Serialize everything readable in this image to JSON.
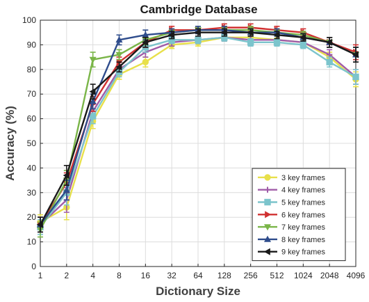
{
  "chart_data": {
    "type": "line",
    "title": "Cambridge Database",
    "xlabel": "Dictionary Size",
    "ylabel": "Accuracy (%)",
    "x": [
      1,
      2,
      4,
      8,
      16,
      32,
      64,
      128,
      256,
      512,
      1024,
      2048,
      4096
    ],
    "x_tick_labels": [
      "1",
      "2",
      "4",
      "8",
      "16",
      "32",
      "64",
      "128",
      "256",
      "512",
      "1024",
      "2048",
      "4096"
    ],
    "x_scale": "log2",
    "ylim": [
      0,
      100
    ],
    "y_ticks": [
      0,
      10,
      20,
      30,
      40,
      50,
      60,
      70,
      80,
      90,
      100
    ],
    "grid": true,
    "legend_position": "bottom-right",
    "series": [
      {
        "name": "3 key frames",
        "color": "#e8e04a",
        "marker": "circle",
        "values": [
          18,
          24,
          59,
          78,
          83,
          90,
          91,
          93,
          93,
          92,
          91,
          85,
          76
        ],
        "errors": [
          3,
          5,
          3,
          2,
          2,
          1.5,
          1.5,
          1.5,
          1.5,
          1.5,
          1.5,
          2,
          3
        ]
      },
      {
        "name": "4 key frames",
        "color": "#a05ca8",
        "marker": "plus",
        "values": [
          17,
          27,
          63,
          80,
          87,
          91,
          92,
          93,
          92,
          92,
          91,
          86,
          77
        ],
        "errors": [
          3,
          5,
          3,
          2,
          2,
          1.5,
          1.5,
          1.5,
          1.5,
          1.5,
          1.5,
          2,
          3
        ]
      },
      {
        "name": "5 key frames",
        "color": "#7cc4cc",
        "marker": "square",
        "values": [
          16,
          30,
          61,
          79,
          89,
          92,
          92,
          93,
          91,
          91,
          90,
          83,
          77
        ],
        "errors": [
          3,
          5,
          3,
          2,
          2,
          1.5,
          1.5,
          1.5,
          1.5,
          1.5,
          1.5,
          2,
          3
        ]
      },
      {
        "name": "6 key frames",
        "color": "#d03030",
        "marker": "triangle-right",
        "values": [
          17,
          34,
          66,
          83,
          91,
          96,
          96,
          97,
          97,
          96,
          95,
          91,
          87
        ],
        "errors": [
          3,
          4,
          3,
          2,
          2,
          1.5,
          1.5,
          1.5,
          1.5,
          1.5,
          1.5,
          2,
          3
        ]
      },
      {
        "name": "7 key frames",
        "color": "#7ab548",
        "marker": "triangle-down",
        "values": [
          15,
          35,
          84,
          86,
          92,
          95,
          96,
          96,
          96,
          95,
          94,
          91,
          86
        ],
        "errors": [
          3,
          4,
          3,
          2,
          2,
          1.5,
          1.5,
          1.5,
          1.5,
          1.5,
          1.5,
          2,
          3
        ]
      },
      {
        "name": "8 key frames",
        "color": "#2e4c8c",
        "marker": "triangle-up",
        "values": [
          17,
          31,
          67,
          92,
          94,
          95,
          96,
          96,
          95,
          95,
          93,
          91,
          86
        ],
        "errors": [
          3,
          4,
          3,
          2,
          2,
          1.5,
          1.5,
          1.5,
          1.5,
          1.5,
          1.5,
          2,
          3
        ]
      },
      {
        "name": "9 key frames",
        "color": "#1a1a1a",
        "marker": "triangle-left",
        "values": [
          17,
          37,
          71,
          81,
          91,
          94,
          95,
          95,
          95,
          94,
          93,
          91,
          86
        ],
        "errors": [
          3,
          4,
          3,
          2,
          2,
          1.5,
          1.5,
          1.5,
          1.5,
          1.5,
          1.5,
          2,
          3
        ]
      }
    ]
  }
}
